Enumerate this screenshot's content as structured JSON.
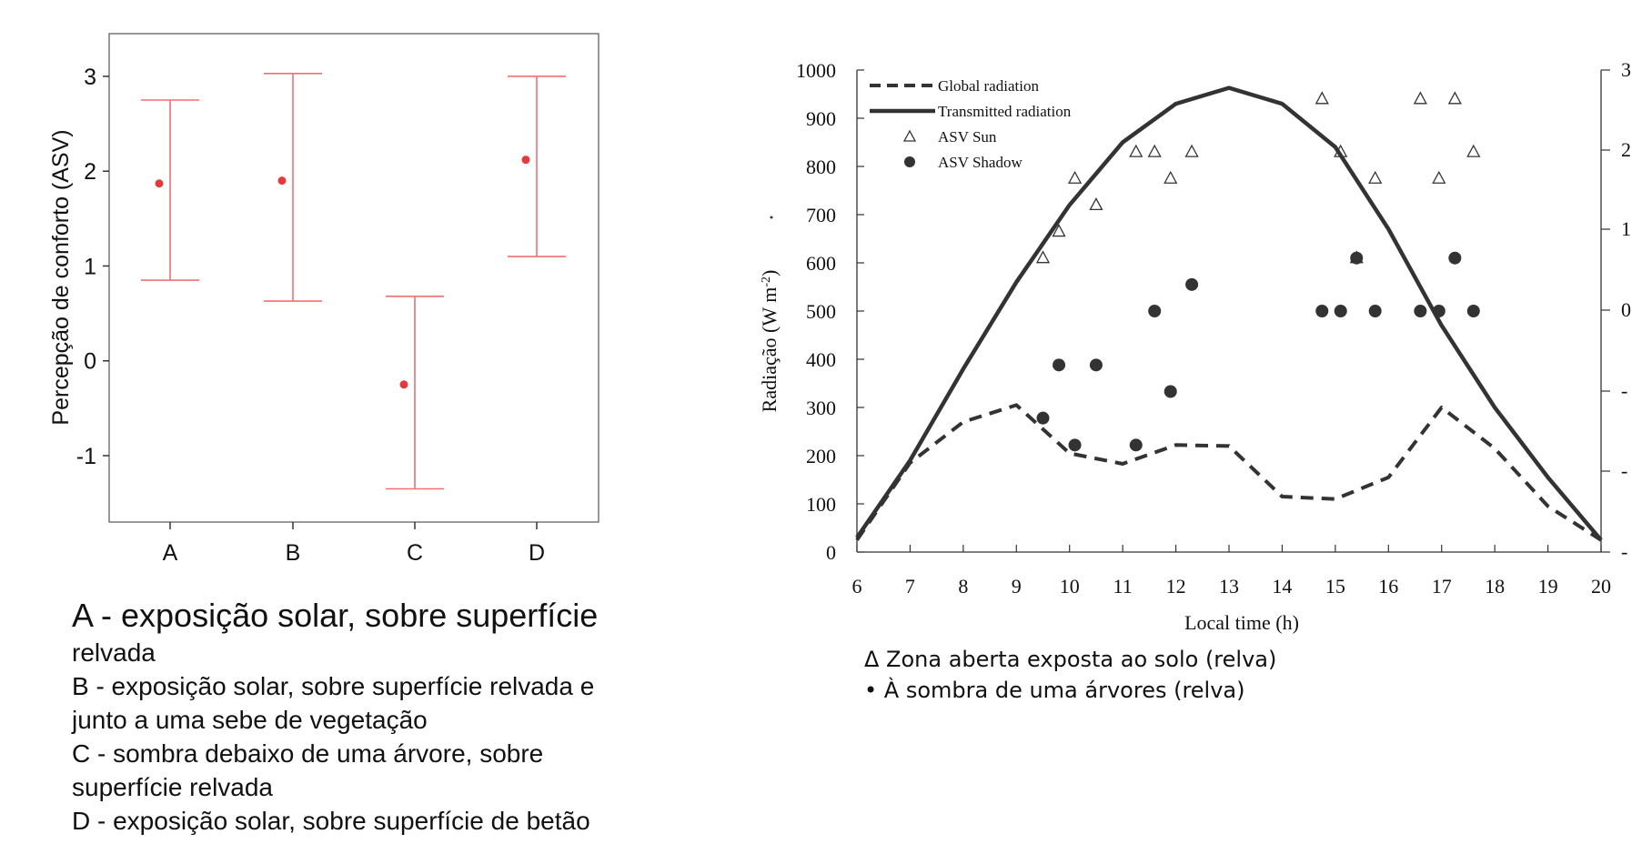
{
  "colors": {
    "errorbar": "#f07070",
    "marker": "#e23b3b",
    "ink": "#333333",
    "axis": "#555555"
  },
  "left_legend": [
    "A - exposição solar, sobre superfície",
    "relvada",
    "B - exposição solar, sobre superfície relvada e",
    "junto a uma sebe de vegetação",
    "C - sombra debaixo de uma árvore, sobre",
    "superfície relvada",
    "D - exposição solar, sobre superfície de betão"
  ],
  "right_legend": [
    "Δ Zona aberta exposta ao solo (relva)",
    "• À sombra de uma árvores (relva)"
  ],
  "chart_data": [
    {
      "type": "scatter",
      "ylabel": "Percepção de conforto (ASV)",
      "categories": [
        "A",
        "B",
        "C",
        "D"
      ],
      "yticks": [
        "-1",
        "0",
        "1",
        "2",
        "3"
      ],
      "ylim": [
        -1.7,
        3.45
      ],
      "grid": false,
      "series": [
        {
          "means": [
            1.87,
            1.9,
            -0.25,
            2.12
          ],
          "lower": [
            0.85,
            0.63,
            -1.35,
            1.1
          ],
          "upper": [
            2.75,
            3.03,
            0.68,
            3.0
          ]
        }
      ]
    },
    {
      "type": "line",
      "ylabel": "Radiação (W m-2)",
      "xlabel": "Local time (h)",
      "xlim": [
        6,
        20
      ],
      "ylim": [
        0,
        1000
      ],
      "xticks": [
        "6",
        "7",
        "8",
        "9",
        "10",
        "11",
        "12",
        "13",
        "14",
        "15",
        "16",
        "17",
        "18",
        "19",
        "20"
      ],
      "yticks": [
        "0",
        "100",
        "200",
        "300",
        "400",
        "500",
        "600",
        "700",
        "800",
        "900",
        "1000"
      ],
      "right_ticks": [
        "-",
        "-",
        "-",
        "0",
        "1",
        "1",
        "2",
        "3"
      ],
      "legend_position": "top-left",
      "grid": false,
      "series": [
        {
          "name": "Global radiation",
          "style": "dashed",
          "x": [
            6,
            7,
            8,
            9,
            10,
            11,
            12,
            13,
            14,
            15,
            16,
            17,
            18,
            19,
            20
          ],
          "y": [
            25,
            185,
            270,
            305,
            205,
            183,
            222,
            220,
            115,
            110,
            155,
            300,
            215,
            95,
            25
          ]
        },
        {
          "name": "Transmitted radiation",
          "style": "solid",
          "x": [
            6,
            7,
            8,
            9,
            10,
            11,
            12,
            13,
            14,
            15,
            16,
            17,
            18,
            19,
            20
          ],
          "y": [
            30,
            190,
            380,
            560,
            720,
            850,
            930,
            963,
            930,
            840,
            670,
            470,
            300,
            155,
            25
          ]
        },
        {
          "name": "ASV Sun",
          "marker": "triangle",
          "x": [
            9.5,
            9.8,
            10.1,
            10.5,
            11.25,
            11.6,
            11.9,
            12.3,
            14.75,
            15.1,
            15.4,
            15.75,
            16.6,
            16.95,
            17.25,
            17.6
          ],
          "y": [
            610,
            665,
            775,
            720,
            830,
            830,
            775,
            830,
            940,
            830,
            610,
            775,
            940,
            775,
            940,
            830
          ]
        },
        {
          "name": "ASV Shadow",
          "marker": "circle",
          "x": [
            9.5,
            9.8,
            10.1,
            10.5,
            11.25,
            11.6,
            11.9,
            12.3,
            14.75,
            15.1,
            15.4,
            15.75,
            16.6,
            16.95,
            17.25,
            17.6
          ],
          "y": [
            278,
            388,
            222,
            388,
            222,
            500,
            333,
            555,
            500,
            500,
            610,
            500,
            500,
            500,
            610,
            500
          ]
        }
      ]
    }
  ]
}
